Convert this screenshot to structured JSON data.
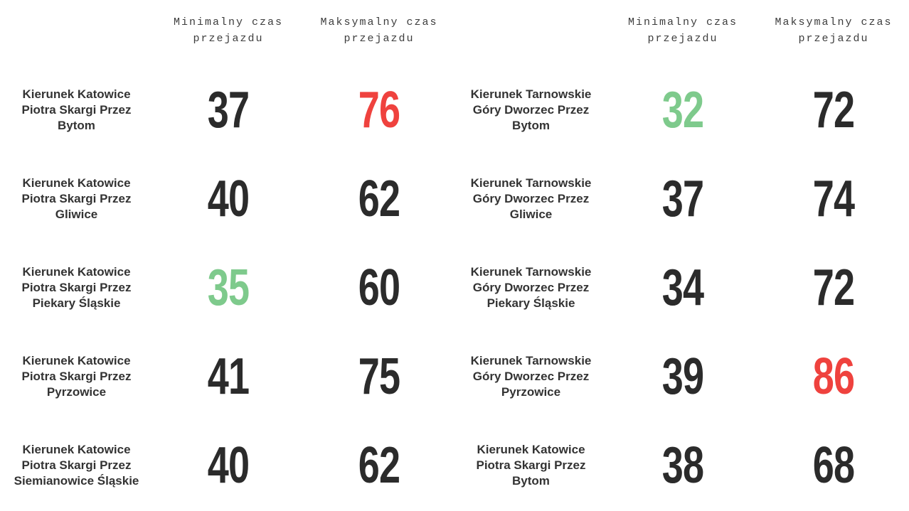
{
  "colors": {
    "background": "#ffffff",
    "header_text": "#3d3d3d",
    "label_text": "#333333",
    "value_default": "#2b2b2b",
    "value_red": "#ef423e",
    "value_green": "#7eca8c"
  },
  "headers": {
    "min": "Minimalny czas\nprzejazdu",
    "max": "Maksymalny czas\nprzejazdu"
  },
  "sides": [
    {
      "rows": [
        {
          "label": "Kierunek Katowice\nPiotra Skargi Przez\nBytom",
          "min": "37",
          "min_state": "default",
          "max": "76",
          "max_state": "red"
        },
        {
          "label": "Kierunek Katowice\nPiotra Skargi Przez\nGliwice",
          "min": "40",
          "min_state": "default",
          "max": "62",
          "max_state": "default"
        },
        {
          "label": "Kierunek Katowice\nPiotra Skargi Przez\nPiekary Śląskie",
          "min": "35",
          "min_state": "green",
          "max": "60",
          "max_state": "default"
        },
        {
          "label": "Kierunek Katowice\nPiotra Skargi Przez\nPyrzowice",
          "min": "41",
          "min_state": "default",
          "max": "75",
          "max_state": "default"
        },
        {
          "label": "Kierunek Katowice\nPiotra Skargi Przez\nSiemianowice Śląskie",
          "min": "40",
          "min_state": "default",
          "max": "62",
          "max_state": "default"
        }
      ]
    },
    {
      "rows": [
        {
          "label": "Kierunek Tarnowskie\nGóry Dworzec Przez\nBytom",
          "min": "32",
          "min_state": "green",
          "max": "72",
          "max_state": "default"
        },
        {
          "label": "Kierunek Tarnowskie\nGóry Dworzec Przez\nGliwice",
          "min": "37",
          "min_state": "default",
          "max": "74",
          "max_state": "default"
        },
        {
          "label": "Kierunek Tarnowskie\nGóry Dworzec Przez\nPiekary Śląskie",
          "min": "34",
          "min_state": "default",
          "max": "72",
          "max_state": "default"
        },
        {
          "label": "Kierunek Tarnowskie\nGóry Dworzec Przez\nPyrzowice",
          "min": "39",
          "min_state": "default",
          "max": "86",
          "max_state": "red"
        },
        {
          "label": "Kierunek Katowice\nPiotra Skargi Przez\nBytom",
          "min": "38",
          "min_state": "default",
          "max": "68",
          "max_state": "default"
        }
      ]
    }
  ]
}
